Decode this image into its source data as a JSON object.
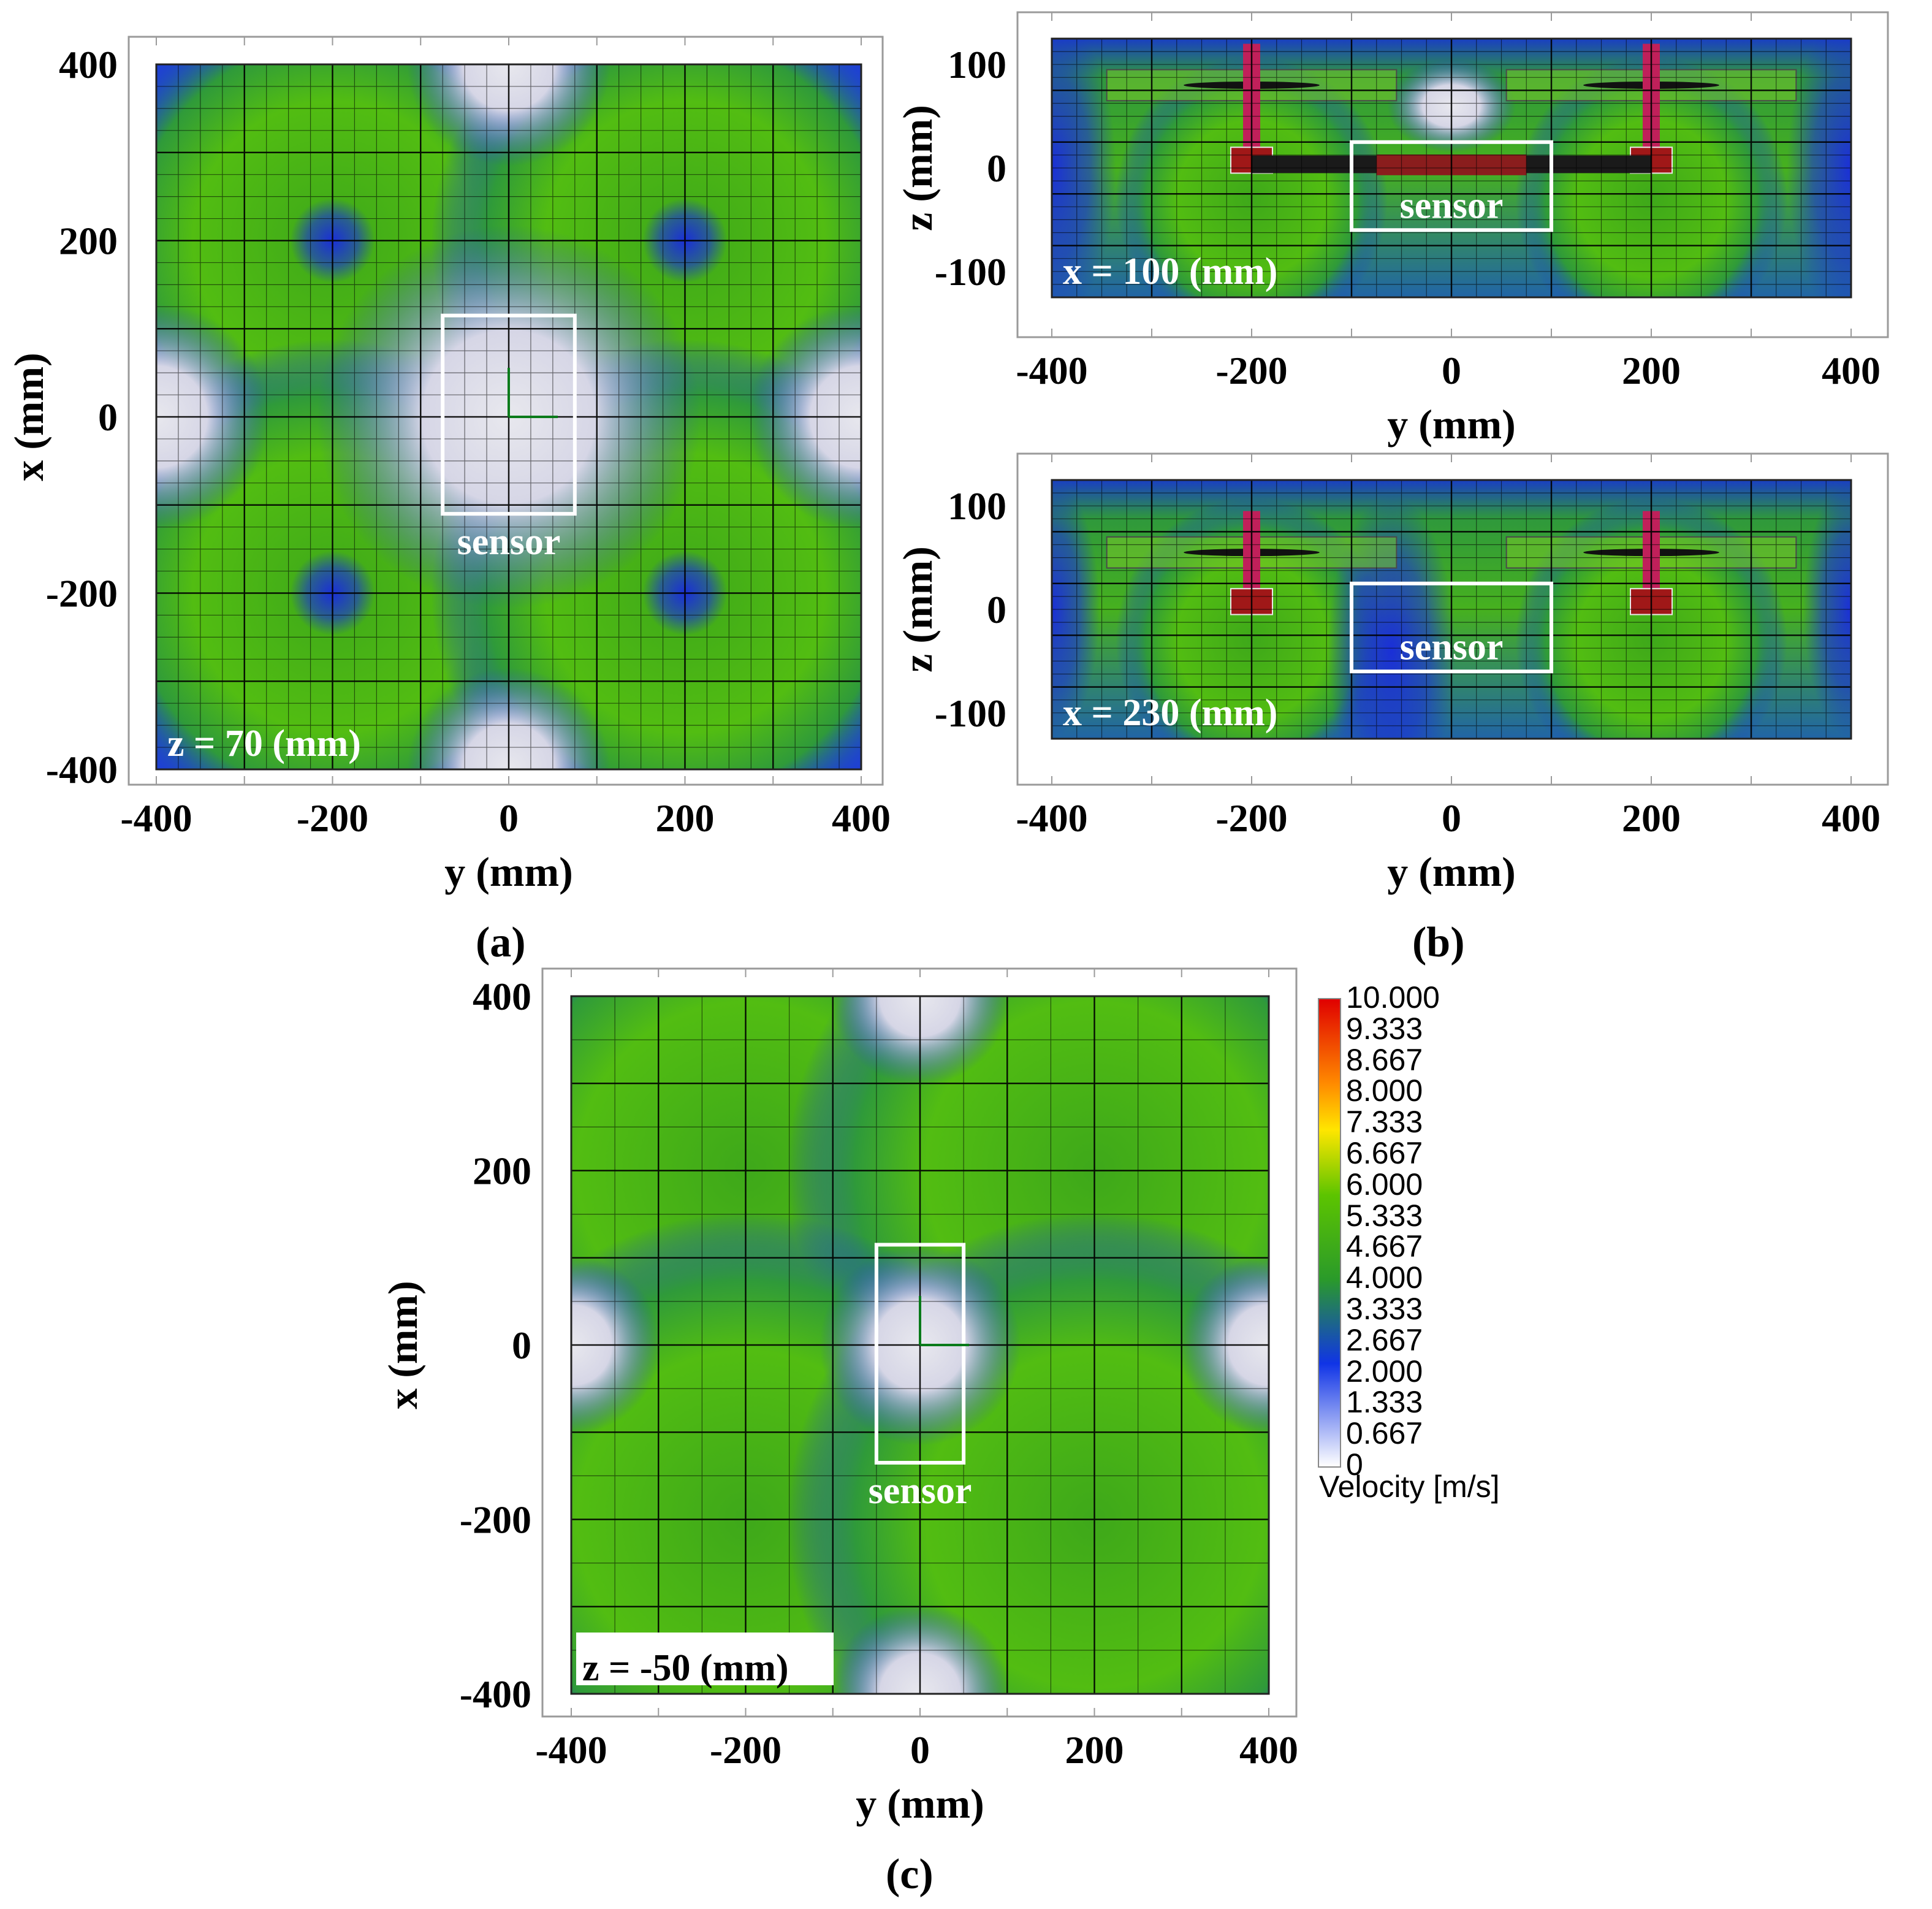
{
  "chart_data": [
    {
      "type": "heatmap",
      "panel": "(a)",
      "slice_label": "z = 70 (mm)",
      "xlabel": "y (mm)",
      "ylabel": "x (mm)",
      "xlim": [
        -400,
        400
      ],
      "ylim": [
        -400,
        400
      ],
      "xticks": [
        "-400",
        "-200",
        "0",
        "200",
        "400"
      ],
      "yticks": [
        "400",
        "200",
        "0",
        "-200",
        "-400"
      ],
      "annotation": "sensor",
      "sensor_box": {
        "y": [
          -75,
          75
        ],
        "x": [
          -110,
          115
        ]
      },
      "rotor_centers_mm": [
        [
          -200,
          200
        ],
        [
          200,
          200
        ],
        [
          -200,
          -200
        ],
        [
          200,
          -200
        ]
      ],
      "grid": true,
      "colormap": "velocity"
    },
    {
      "type": "heatmap",
      "panel": "(b) top",
      "slice_label": "x = 100 (mm)",
      "xlabel": "y (mm)",
      "ylabel": "z (mm)",
      "xlim": [
        -400,
        400
      ],
      "ylim": [
        -125,
        125
      ],
      "xticks": [
        "-400",
        "-200",
        "0",
        "200",
        "400"
      ],
      "yticks": [
        "100",
        "0",
        "-100"
      ],
      "annotation": "sensor",
      "sensor_box": {
        "y": [
          -100,
          100
        ],
        "z": [
          -60,
          25
        ]
      },
      "grid": true,
      "colormap": "velocity"
    },
    {
      "type": "heatmap",
      "panel": "(b) bottom",
      "slice_label": "x = 230 (mm)",
      "xlabel": "y (mm)",
      "ylabel": "z (mm)",
      "xlim": [
        -400,
        400
      ],
      "ylim": [
        -125,
        125
      ],
      "xticks": [
        "-400",
        "-200",
        "0",
        "200",
        "400"
      ],
      "yticks": [
        "100",
        "0",
        "-100"
      ],
      "annotation": "sensor",
      "sensor_box": {
        "y": [
          -100,
          100
        ],
        "z": [
          -60,
          25
        ]
      },
      "grid": true,
      "colormap": "velocity"
    },
    {
      "type": "heatmap",
      "panel": "(c)",
      "slice_label": "z = -50 (mm)",
      "xlabel": "y (mm)",
      "ylabel": "x (mm)",
      "xlim": [
        -400,
        400
      ],
      "ylim": [
        -400,
        400
      ],
      "xticks": [
        "-400",
        "-200",
        "0",
        "200",
        "400"
      ],
      "yticks": [
        "400",
        "200",
        "0",
        "-200",
        "-400"
      ],
      "annotation": "sensor",
      "sensor_box": {
        "y": [
          -50,
          50
        ],
        "x": [
          -135,
          115
        ]
      },
      "rotor_centers_mm": [
        [
          -200,
          200
        ],
        [
          200,
          200
        ],
        [
          -200,
          -200
        ],
        [
          200,
          -200
        ]
      ],
      "grid": true,
      "colormap": "velocity"
    }
  ],
  "captions": {
    "a": "(a)",
    "b": "(b)",
    "c": "(c)"
  },
  "colorbar": {
    "title": "Velocity [m/s]",
    "labels": [
      "10.000",
      "9.333",
      "8.667",
      "8.000",
      "7.333",
      "6.667",
      "6.000",
      "5.333",
      "4.667",
      "4.000",
      "3.333",
      "2.667",
      "2.000",
      "1.333",
      "0.667",
      "0"
    ],
    "colors": {
      "max": "#e00000",
      "high": "#ff8a00",
      "mid_high": "#ffe600",
      "mid": "#5cc400",
      "mid_low": "#2a9a2a",
      "low": "#1034e6",
      "min": "#ffffff"
    }
  }
}
